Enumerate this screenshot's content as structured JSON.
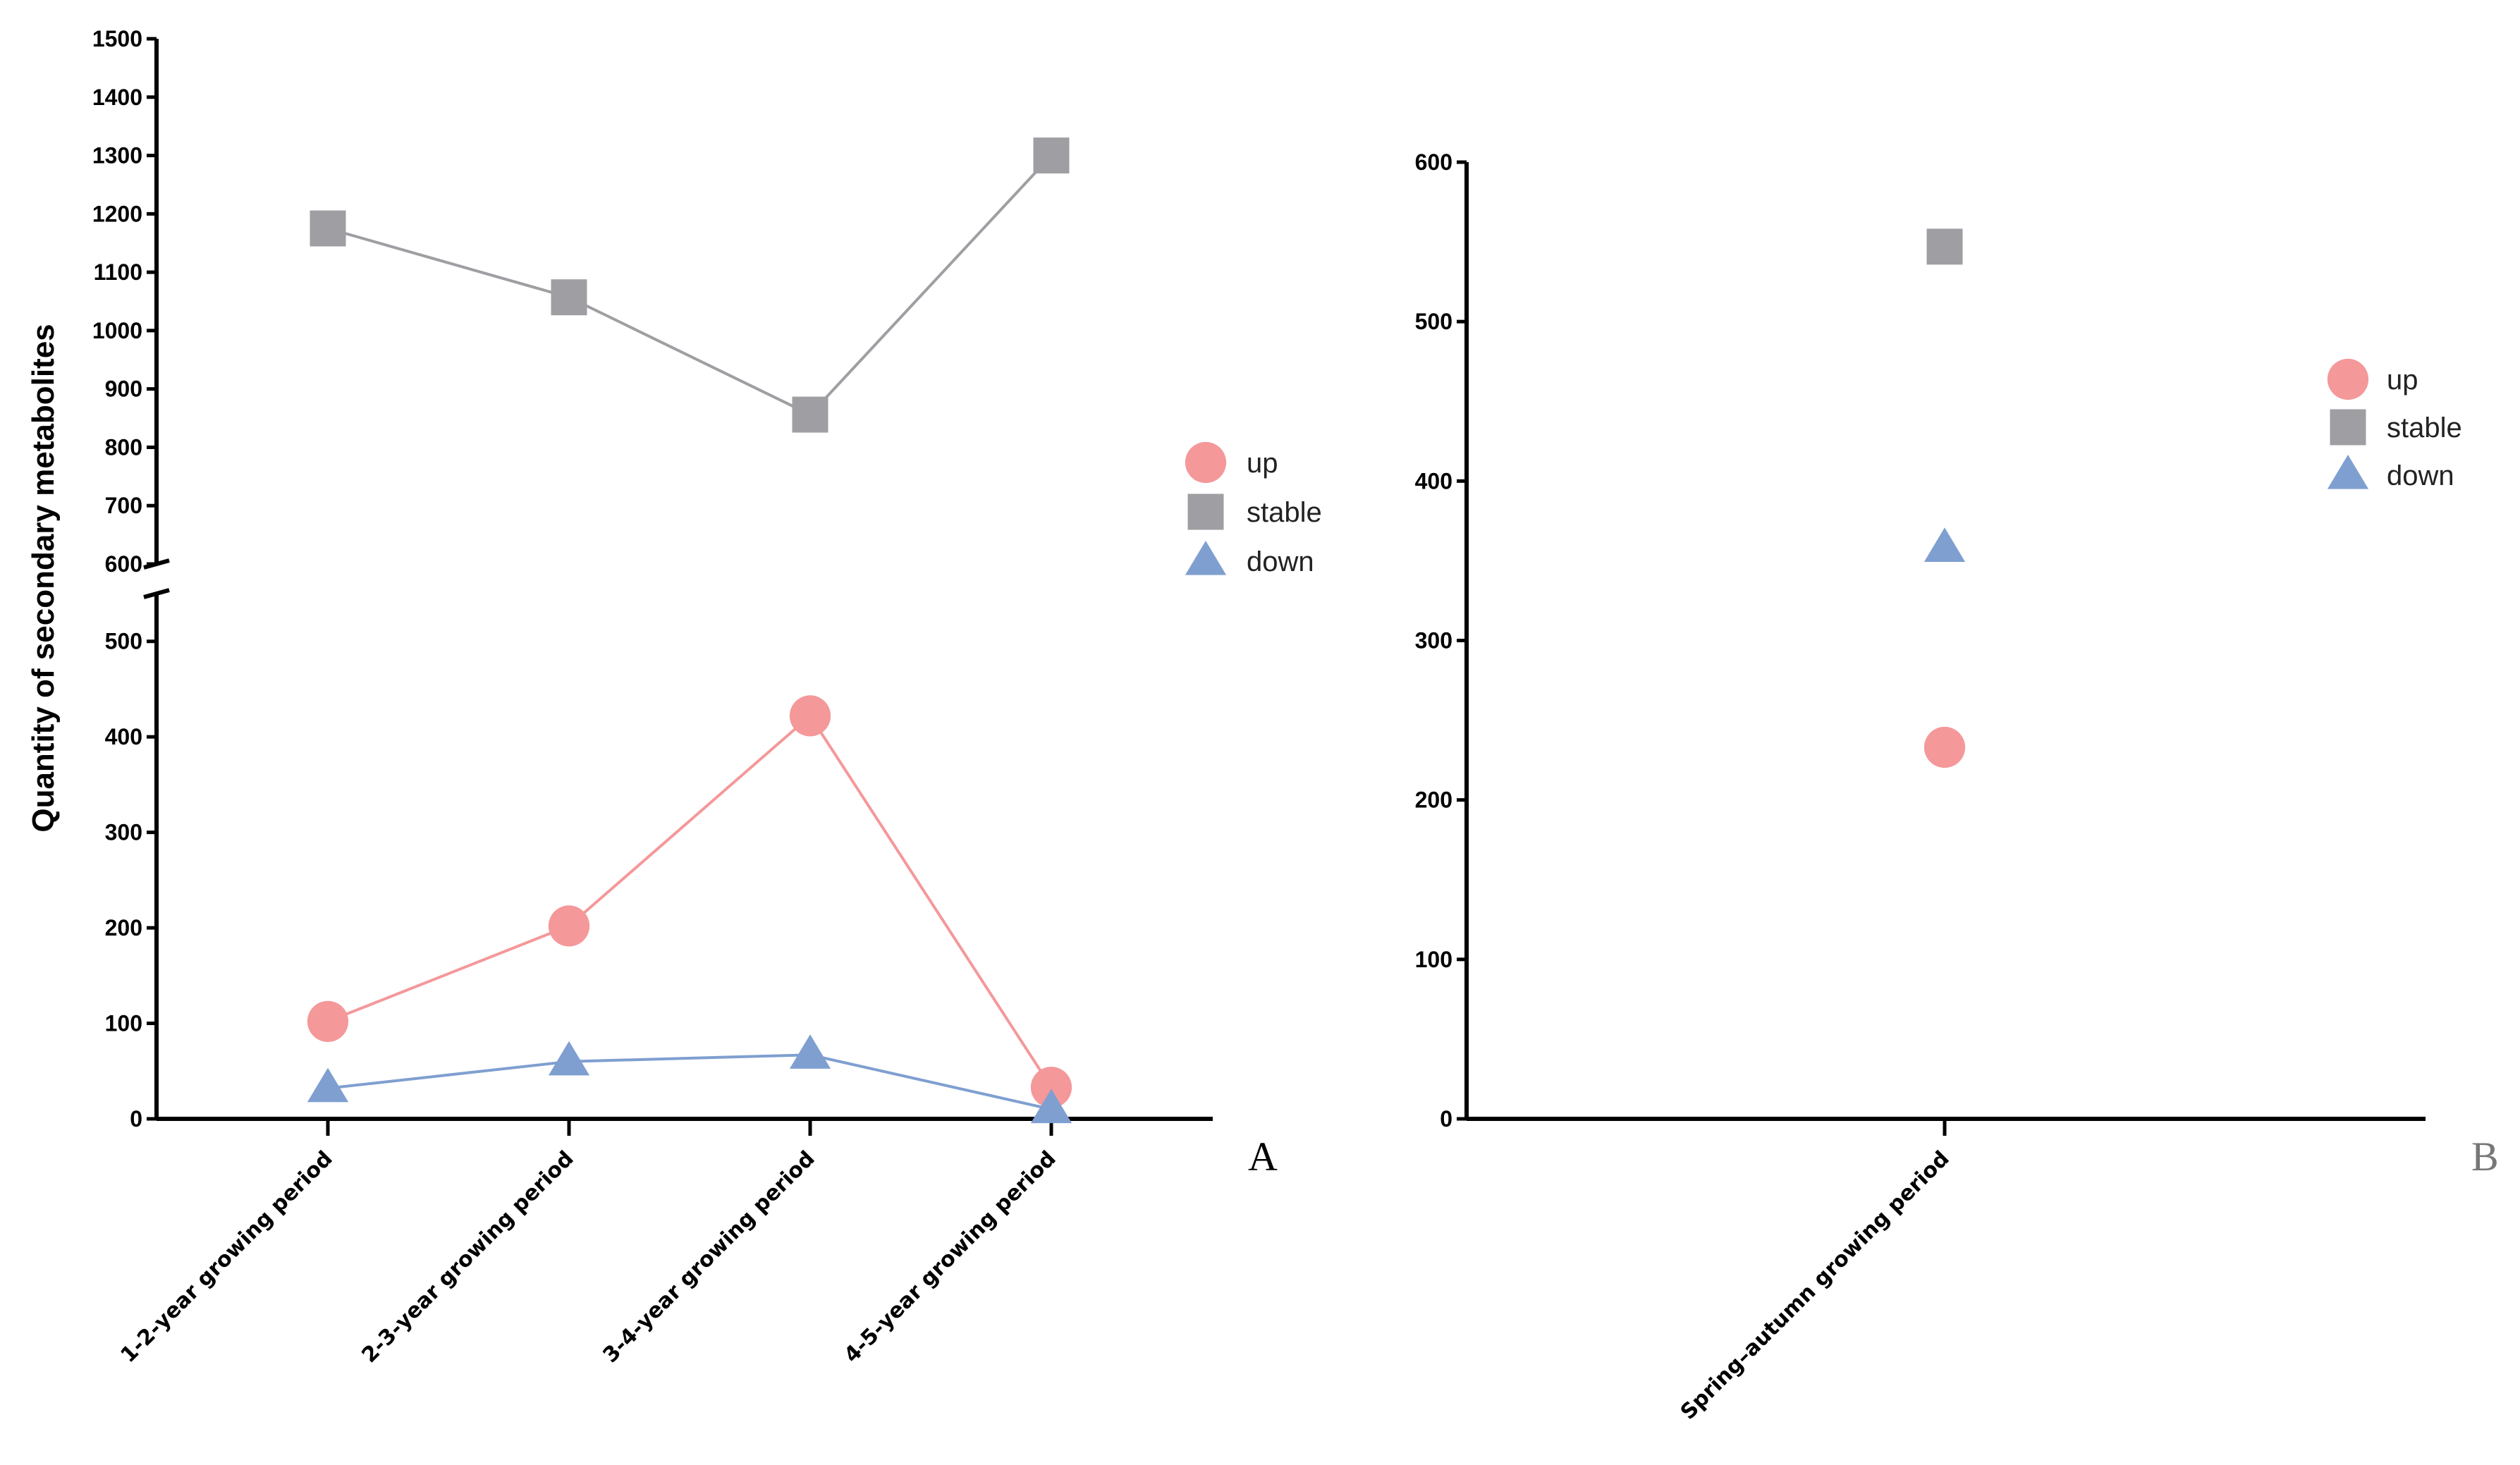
{
  "chart_data": [
    {
      "id": "A",
      "panel_label": "A",
      "type": "line",
      "ylabel": "Quantity of secondary metabolites",
      "categories": [
        "1-2-year growing period",
        "2-3-year growing period",
        "3-4-year growing period",
        "4-5-year growing period"
      ],
      "y_axis_break": true,
      "upper_ylim": [
        600,
        1500
      ],
      "upper_ticks": [
        600,
        700,
        800,
        900,
        1000,
        1100,
        1200,
        1300,
        1400,
        1500
      ],
      "lower_ylim": [
        0,
        550
      ],
      "lower_ticks": [
        0,
        100,
        200,
        300,
        400,
        500
      ],
      "legend_position": "right",
      "series": [
        {
          "name": "up",
          "marker": "circle",
          "color": "#f4989a",
          "values": [
            102,
            202,
            422,
            33
          ]
        },
        {
          "name": "stable",
          "marker": "square",
          "color": "#9e9ea3",
          "values": [
            1175,
            1057,
            856,
            1300
          ]
        },
        {
          "name": "down",
          "marker": "triangle",
          "color": "#7f9fd0",
          "values": [
            32,
            60,
            67,
            10
          ]
        }
      ]
    },
    {
      "id": "B",
      "panel_label": "B",
      "type": "scatter",
      "ylabel": "",
      "categories": [
        "Spring–autumn growing period"
      ],
      "ylim": [
        0,
        600
      ],
      "ticks": [
        0,
        100,
        200,
        300,
        400,
        500,
        600
      ],
      "legend_position": "top-right",
      "series": [
        {
          "name": "up",
          "marker": "circle",
          "color": "#f4989a",
          "values": [
            233
          ]
        },
        {
          "name": "stable",
          "marker": "square",
          "color": "#9e9ea3",
          "values": [
            547
          ]
        },
        {
          "name": "down",
          "marker": "triangle",
          "color": "#7f9fd0",
          "values": [
            358
          ]
        }
      ]
    }
  ]
}
